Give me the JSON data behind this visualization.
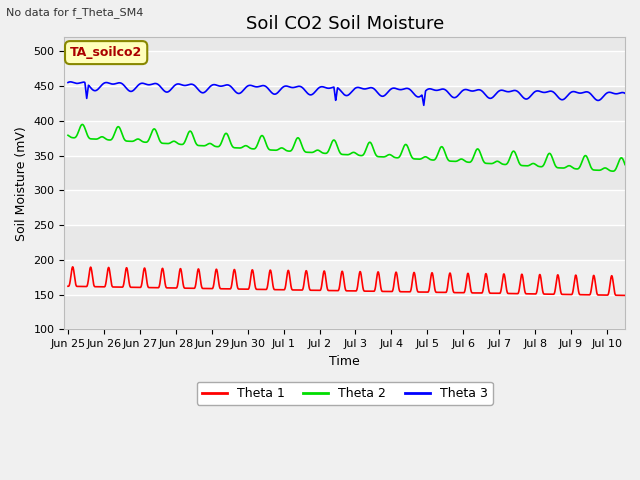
{
  "title": "Soil CO2 Soil Moisture",
  "xlabel": "Time",
  "ylabel": "Soil Moisture (mV)",
  "top_left_text": "No data for f_Theta_SM4",
  "annotation_box": "TA_soilco2",
  "ylim": [
    100,
    520
  ],
  "yticks": [
    100,
    150,
    200,
    250,
    300,
    350,
    400,
    450,
    500
  ],
  "x_labels": [
    "Jun 25",
    "Jun 26",
    "Jun 27",
    "Jun 28",
    "Jun 29",
    "Jun 30",
    "Jul 1",
    "Jul 2",
    "Jul 3",
    "Jul 4",
    "Jul 5",
    "Jul 6",
    "Jul 7",
    "Jul 8",
    "Jul 9",
    "Jul 10"
  ],
  "n_days": 15.5,
  "theta1_base": 162,
  "theta1_trend": -0.85,
  "theta2_base": 376,
  "theta2_trend": -3.2,
  "theta3_base": 452,
  "theta3_trend": -1.0,
  "color_theta1": "#ff0000",
  "color_theta2": "#00dd00",
  "color_theta3": "#0000ff",
  "bg_dark": "#e0e0e0",
  "bg_light": "#ebebeb",
  "grid_color": "#ffffff",
  "annotation_bg": "#ffffbb",
  "annotation_fg": "#aa0000",
  "annotation_border": "#888800",
  "title_fontsize": 13,
  "label_fontsize": 9,
  "tick_fontsize": 8,
  "line_width": 1.2,
  "band_ranges": [
    [
      100,
      150
    ],
    [
      150,
      200
    ],
    [
      200,
      250
    ],
    [
      250,
      300
    ],
    [
      300,
      350
    ],
    [
      350,
      400
    ],
    [
      400,
      450
    ],
    [
      450,
      500
    ]
  ],
  "band_colors": [
    "#e8e8e8",
    "#f0f0f0",
    "#e8e8e8",
    "#f0f0f0",
    "#e8e8e8",
    "#f0f0f0",
    "#e8e8e8",
    "#f0f0f0"
  ]
}
